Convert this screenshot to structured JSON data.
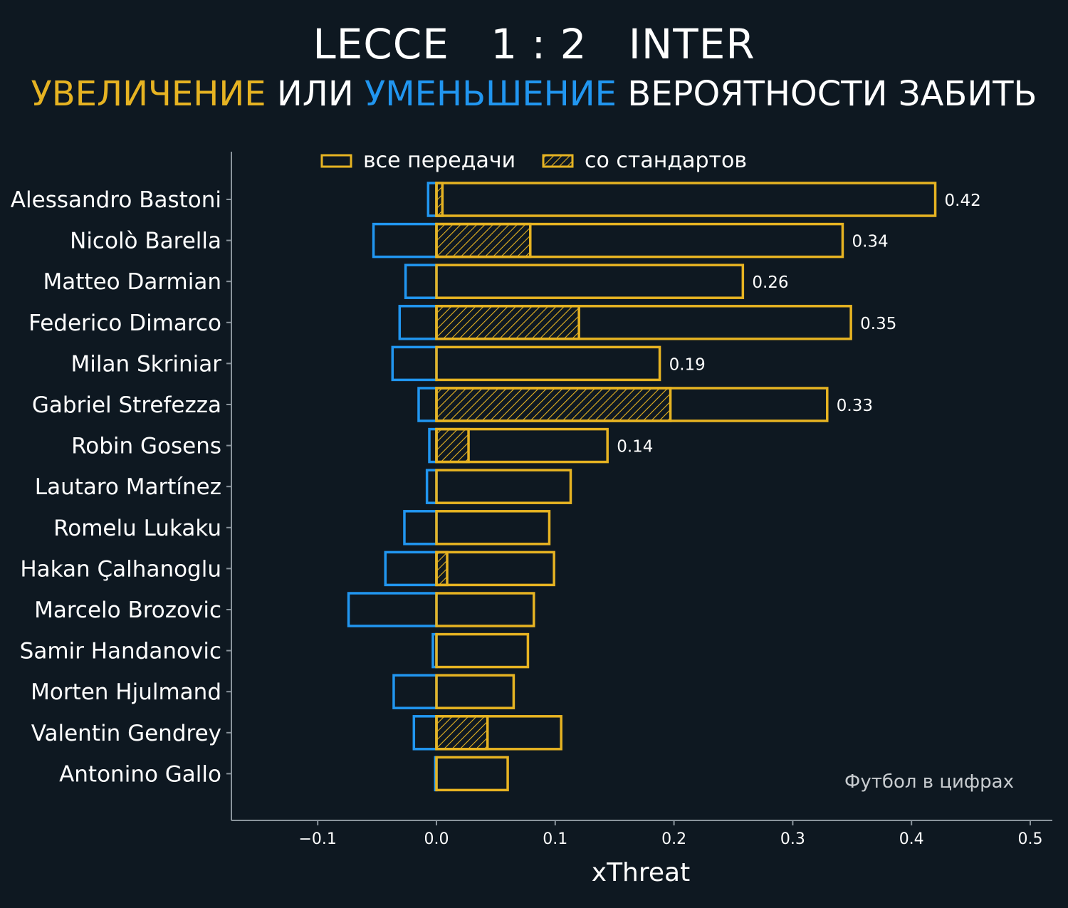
{
  "header": {
    "home_team": "LECCE",
    "score": "1 : 2",
    "away_team": "INTER",
    "subtitle_part1": "УВЕЛИЧЕНИЕ",
    "subtitle_part2": " ИЛИ ",
    "subtitle_part3": "УМЕНЬШЕНИЕ",
    "subtitle_part4": " ВЕРОЯТНОСТИ ЗАБИТЬ"
  },
  "colors": {
    "background": "#0e1821",
    "increase": "#e6b322",
    "decrease": "#2196f0",
    "axis": "#8a949c",
    "text": "#ffffff"
  },
  "legend": {
    "all_passes": "все передачи",
    "set_pieces": "со стандартов",
    "placement": "top"
  },
  "credit": "Футбол в цифрах",
  "chart_data": {
    "type": "bar",
    "orientation": "horizontal",
    "title": "LECCE 1 : 2 INTER",
    "subtitle": "УВЕЛИЧЕНИЕ ИЛИ УМЕНЬШЕНИЕ ВЕРОЯТНОСТИ ЗАБИТЬ",
    "xlabel": "xThreat",
    "ylabel": "",
    "xlim": [
      -0.17,
      0.52
    ],
    "xticks": [
      -0.1,
      0.0,
      0.1,
      0.2,
      0.3,
      0.4,
      0.5
    ],
    "xtick_labels": [
      "−0.1",
      "0.0",
      "0.1",
      "0.2",
      "0.3",
      "0.4",
      "0.5"
    ],
    "grid": false,
    "categories": [
      "Alessandro Bastoni",
      "Nicolò Barella",
      "Matteo Darmian",
      "Federico Dimarco",
      "Milan Skriniar",
      "Gabriel Strefezza",
      "Robin Gosens",
      "Lautaro Martínez",
      "Romelu Lukaku",
      "Hakan Çalhanoglu",
      "Marcelo Brozovic",
      "Samir Handanovic",
      "Morten Hjulmand",
      "Valentin Gendrey",
      "Antonino Gallo"
    ],
    "series": [
      {
        "name": "все передачи",
        "values": [
          0.42,
          0.342,
          0.258,
          0.349,
          0.188,
          0.329,
          0.144,
          0.113,
          0.095,
          0.099,
          0.082,
          0.077,
          0.065,
          0.105,
          0.06
        ]
      },
      {
        "name": "со стандартов",
        "values": [
          0.005,
          0.079,
          0.0,
          0.12,
          0.0,
          0.197,
          0.027,
          0.0,
          0.0,
          0.009,
          0.0,
          0.0,
          0.0,
          0.043,
          0.0
        ]
      },
      {
        "values": [
          -0.007,
          -0.053,
          -0.026,
          -0.031,
          -0.037,
          -0.015,
          -0.006,
          -0.008,
          -0.027,
          -0.043,
          -0.074,
          -0.003,
          -0.036,
          -0.019,
          -0.001
        ]
      }
    ],
    "value_labels": [
      "0.42",
      "0.34",
      "0.26",
      "0.35",
      "0.19",
      "0.33",
      "0.14",
      "",
      "",
      "",
      "",
      "",
      "",
      "",
      ""
    ]
  }
}
